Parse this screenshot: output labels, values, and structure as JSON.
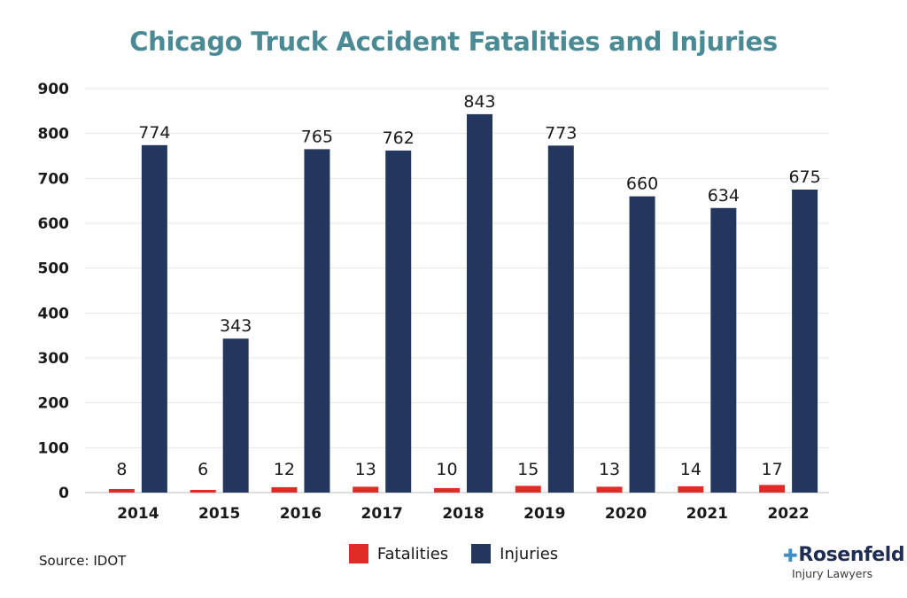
{
  "chart_data": {
    "type": "bar",
    "title": "Chicago Truck Accident Fatalities and Injuries",
    "categories": [
      "2014",
      "2015",
      "2016",
      "2017",
      "2018",
      "2019",
      "2020",
      "2021",
      "2022"
    ],
    "series": [
      {
        "name": "Fatalities",
        "color": "#e02b27",
        "values": [
          8,
          6,
          12,
          13,
          10,
          15,
          13,
          14,
          17
        ]
      },
      {
        "name": "Injuries",
        "color": "#22365e",
        "values": [
          774,
          343,
          765,
          762,
          843,
          773,
          660,
          634,
          675
        ]
      }
    ],
    "yticks": [
      "0",
      "100",
      "200",
      "300",
      "400",
      "500",
      "600",
      "700",
      "800",
      "900"
    ],
    "ylim": [
      0,
      900
    ],
    "grid": true,
    "legend": "bottom-center"
  },
  "title_color": "#4a8a94",
  "source": "Source: IDOT",
  "logo": {
    "brand": "Rosenfeld",
    "tagline": "Injury Lawyers"
  }
}
